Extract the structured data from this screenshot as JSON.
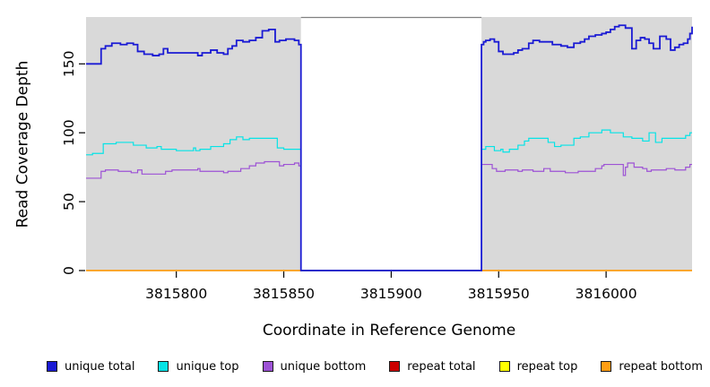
{
  "chart_data": {
    "type": "line",
    "line_style": "step-after",
    "xlabel": "Coordinate in Reference Genome",
    "ylabel": "Read Coverage Depth",
    "xlim": [
      3815758,
      3816040
    ],
    "ylim": [
      0,
      184
    ],
    "x_ticks": [
      3815800,
      3815850,
      3815900,
      3815950,
      3816000
    ],
    "y_ticks": [
      0,
      50,
      100,
      150
    ],
    "grid": false,
    "legend_position": "bottom",
    "plot_bg": "#ffffff",
    "shaded_band_color": "#d9d9d9",
    "shaded_regions": [
      {
        "x0": 3815758,
        "x1": 3815858
      },
      {
        "x0": 3815942,
        "x1": 3816040
      }
    ],
    "gap_region": {
      "x0": 3815858,
      "x1": 3815942,
      "top_border_color": "#808080"
    },
    "axis_color": "#000000",
    "draw_order": [
      3,
      4,
      5,
      2,
      1,
      0
    ],
    "series": [
      {
        "name": "unique total",
        "color": "#1b1bd4",
        "width": 1.8,
        "points": [
          [
            3815758,
            150
          ],
          [
            3815765,
            161
          ],
          [
            3815767,
            163
          ],
          [
            3815770,
            165
          ],
          [
            3815774,
            164
          ],
          [
            3815777,
            165
          ],
          [
            3815780,
            164
          ],
          [
            3815782,
            159
          ],
          [
            3815785,
            157
          ],
          [
            3815789,
            156
          ],
          [
            3815792,
            157
          ],
          [
            3815794,
            161
          ],
          [
            3815796,
            158
          ],
          [
            3815810,
            156
          ],
          [
            3815812,
            158
          ],
          [
            3815816,
            160
          ],
          [
            3815819,
            158
          ],
          [
            3815822,
            157
          ],
          [
            3815824,
            161
          ],
          [
            3815826,
            163
          ],
          [
            3815828,
            167
          ],
          [
            3815831,
            166
          ],
          [
            3815834,
            167
          ],
          [
            3815837,
            169
          ],
          [
            3815840,
            174
          ],
          [
            3815843,
            175
          ],
          [
            3815846,
            166
          ],
          [
            3815848,
            167
          ],
          [
            3815851,
            168
          ],
          [
            3815855,
            167
          ],
          [
            3815857,
            164
          ],
          [
            3815858,
            0
          ],
          [
            3815942,
            164
          ],
          [
            3815943,
            166
          ],
          [
            3815944,
            167
          ],
          [
            3815946,
            168
          ],
          [
            3815948,
            166
          ],
          [
            3815950,
            159
          ],
          [
            3815952,
            157
          ],
          [
            3815957,
            158
          ],
          [
            3815959,
            160
          ],
          [
            3815961,
            161
          ],
          [
            3815964,
            165
          ],
          [
            3815966,
            167
          ],
          [
            3815969,
            166
          ],
          [
            3815975,
            164
          ],
          [
            3815979,
            163
          ],
          [
            3815982,
            162
          ],
          [
            3815985,
            165
          ],
          [
            3815988,
            166
          ],
          [
            3815990,
            168
          ],
          [
            3815992,
            170
          ],
          [
            3815995,
            171
          ],
          [
            3815998,
            172
          ],
          [
            3816000,
            173
          ],
          [
            3816002,
            175
          ],
          [
            3816004,
            177
          ],
          [
            3816006,
            178
          ],
          [
            3816009,
            176
          ],
          [
            3816012,
            161
          ],
          [
            3816014,
            167
          ],
          [
            3816016,
            169
          ],
          [
            3816018,
            168
          ],
          [
            3816020,
            165
          ],
          [
            3816022,
            161
          ],
          [
            3816025,
            170
          ],
          [
            3816028,
            168
          ],
          [
            3816030,
            160
          ],
          [
            3816032,
            162
          ],
          [
            3816034,
            164
          ],
          [
            3816036,
            165
          ],
          [
            3816038,
            168
          ],
          [
            3816039,
            172
          ],
          [
            3816040,
            177
          ]
        ]
      },
      {
        "name": "unique top",
        "color": "#06e3e6",
        "width": 1.2,
        "points": [
          [
            3815758,
            84
          ],
          [
            3815761,
            85
          ],
          [
            3815766,
            92
          ],
          [
            3815772,
            93
          ],
          [
            3815780,
            91
          ],
          [
            3815786,
            89
          ],
          [
            3815791,
            90
          ],
          [
            3815793,
            88
          ],
          [
            3815800,
            87
          ],
          [
            3815808,
            89
          ],
          [
            3815809,
            87
          ],
          [
            3815811,
            88
          ],
          [
            3815816,
            90
          ],
          [
            3815822,
            92
          ],
          [
            3815825,
            95
          ],
          [
            3815828,
            97
          ],
          [
            3815831,
            95
          ],
          [
            3815834,
            96
          ],
          [
            3815847,
            89
          ],
          [
            3815850,
            88
          ],
          [
            3815858,
            0
          ],
          [
            3815942,
            88
          ],
          [
            3815944,
            90
          ],
          [
            3815948,
            87
          ],
          [
            3815951,
            88
          ],
          [
            3815952,
            86
          ],
          [
            3815955,
            88
          ],
          [
            3815959,
            91
          ],
          [
            3815962,
            94
          ],
          [
            3815964,
            96
          ],
          [
            3815973,
            93
          ],
          [
            3815976,
            90
          ],
          [
            3815979,
            91
          ],
          [
            3815985,
            96
          ],
          [
            3815988,
            97
          ],
          [
            3815992,
            100
          ],
          [
            3815998,
            102
          ],
          [
            3816002,
            100
          ],
          [
            3816008,
            97
          ],
          [
            3816012,
            96
          ],
          [
            3816017,
            94
          ],
          [
            3816020,
            100
          ],
          [
            3816023,
            93
          ],
          [
            3816026,
            96
          ],
          [
            3816037,
            98
          ],
          [
            3816039,
            100
          ]
        ]
      },
      {
        "name": "unique bottom",
        "color": "#9d52d5",
        "width": 1.2,
        "points": [
          [
            3815758,
            67
          ],
          [
            3815765,
            72
          ],
          [
            3815767,
            73
          ],
          [
            3815773,
            72
          ],
          [
            3815779,
            71
          ],
          [
            3815782,
            73
          ],
          [
            3815784,
            70
          ],
          [
            3815795,
            72
          ],
          [
            3815798,
            73
          ],
          [
            3815810,
            74
          ],
          [
            3815811,
            72
          ],
          [
            3815822,
            71
          ],
          [
            3815824,
            72
          ],
          [
            3815830,
            74
          ],
          [
            3815834,
            76
          ],
          [
            3815837,
            78
          ],
          [
            3815841,
            79
          ],
          [
            3815848,
            76
          ],
          [
            3815850,
            77
          ],
          [
            3815855,
            78
          ],
          [
            3815857,
            76
          ],
          [
            3815858,
            0
          ],
          [
            3815942,
            77
          ],
          [
            3815947,
            74
          ],
          [
            3815949,
            72
          ],
          [
            3815953,
            73
          ],
          [
            3815959,
            72
          ],
          [
            3815961,
            73
          ],
          [
            3815966,
            72
          ],
          [
            3815971,
            74
          ],
          [
            3815974,
            72
          ],
          [
            3815981,
            71
          ],
          [
            3815987,
            72
          ],
          [
            3815995,
            74
          ],
          [
            3815998,
            76
          ],
          [
            3815999,
            77
          ],
          [
            3816008,
            69
          ],
          [
            3816009,
            75
          ],
          [
            3816010,
            78
          ],
          [
            3816013,
            75
          ],
          [
            3816017,
            74
          ],
          [
            3816019,
            72
          ],
          [
            3816021,
            73
          ],
          [
            3816028,
            74
          ],
          [
            3816032,
            73
          ],
          [
            3816037,
            75
          ],
          [
            3816039,
            77
          ]
        ]
      },
      {
        "name": "repeat total",
        "color": "#cc0000",
        "width": 1.2,
        "points": [
          [
            3815758,
            0
          ],
          [
            3816040,
            0
          ]
        ]
      },
      {
        "name": "repeat top",
        "color": "#ffff00",
        "width": 1.2,
        "points": [
          [
            3815758,
            0
          ],
          [
            3816040,
            0
          ]
        ]
      },
      {
        "name": "repeat bottom",
        "color": "#ff9e14",
        "width": 1.6,
        "points": [
          [
            3815758,
            0
          ],
          [
            3816040,
            0
          ]
        ]
      }
    ]
  }
}
